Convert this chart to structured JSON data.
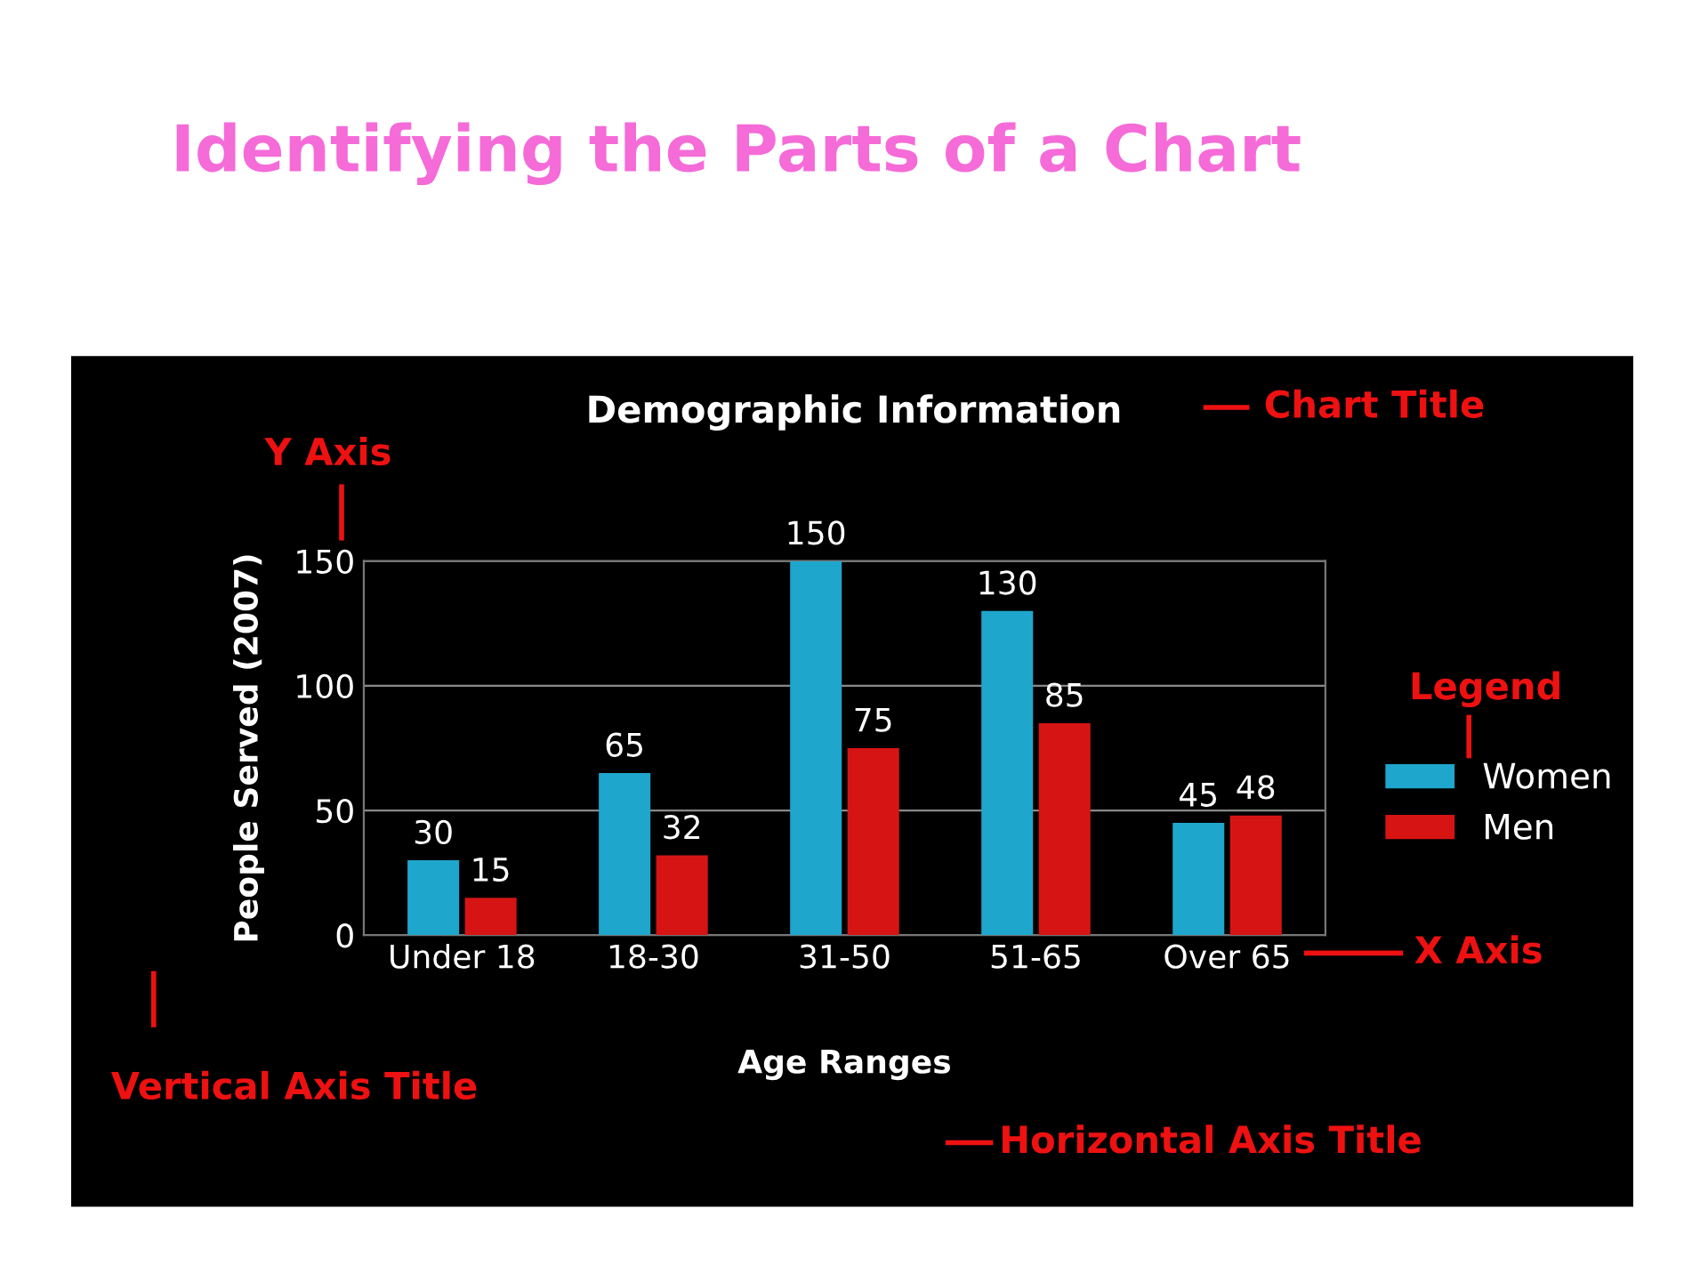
{
  "chart_data": {
    "type": "bar",
    "title": "Identifying the Parts of a Chart",
    "subtitle": "Demographic Information",
    "xlabel": "Age Ranges",
    "ylabel": "People Served (2007)",
    "categories": [
      "Under 18",
      "18-30",
      "31-50",
      "51-65",
      "Over 65"
    ],
    "series": [
      {
        "name": "Women",
        "color": "#1ea6cc",
        "values": [
          30,
          65,
          150,
          130,
          45
        ]
      },
      {
        "name": "Men",
        "color": "#d71414",
        "values": [
          15,
          32,
          75,
          85,
          48
        ]
      }
    ],
    "ylim": [
      0,
      150
    ],
    "yticks": [
      0,
      50,
      100,
      150
    ],
    "grid": "y",
    "legend": "right",
    "data_labels": true,
    "annotations": [
      "Chart Title",
      "Y Axis",
      "Legend",
      "X Axis",
      "Vertical Axis Title",
      "Horizontal Axis Title"
    ]
  }
}
